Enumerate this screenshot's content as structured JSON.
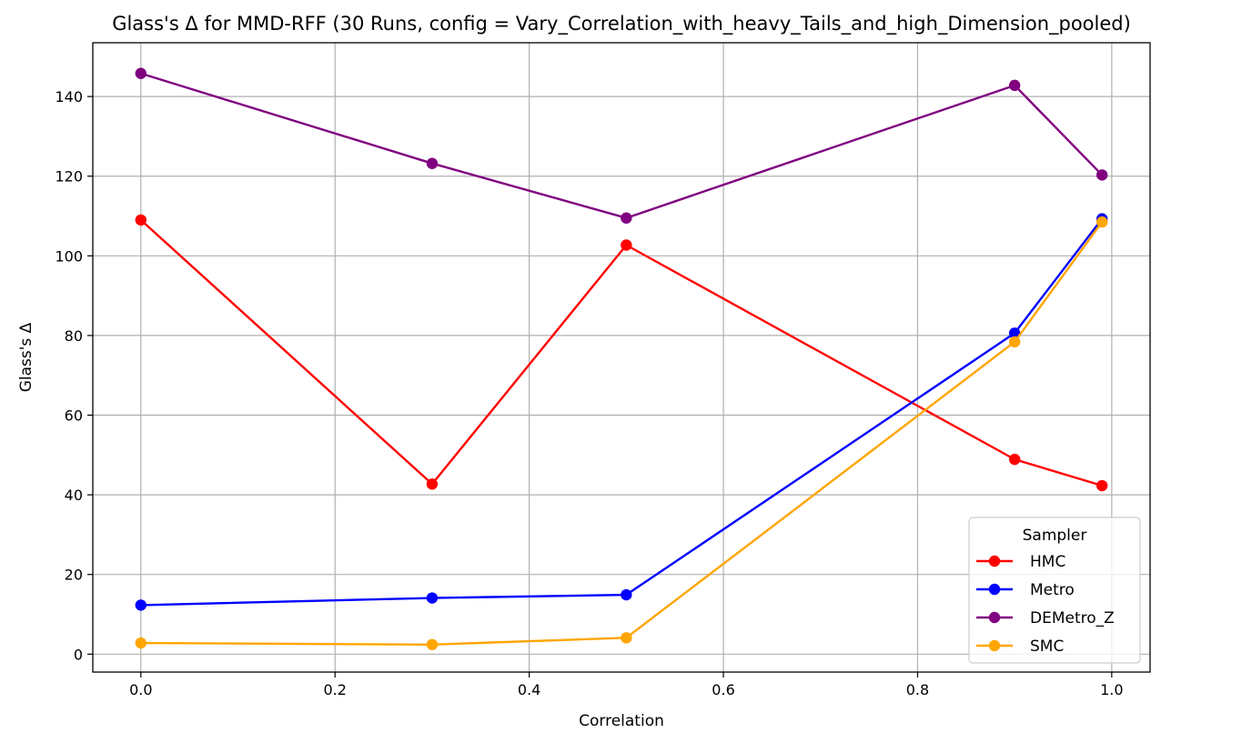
{
  "chart_data": {
    "type": "line",
    "title": "Glass's Δ for MMD-RFF (30 Runs, config = Vary_Correlation_with_heavy_Tails_and_high_Dimension_pooled)",
    "xlabel": "Correlation",
    "ylabel": "Glass's Δ",
    "x": [
      0.0,
      0.3,
      0.5,
      0.9,
      0.99
    ],
    "xlim": [
      -0.0495,
      1.0395
    ],
    "ylim": [
      -4.5,
      153.5
    ],
    "xticks": [
      0.0,
      0.2,
      0.4,
      0.6,
      0.8,
      1.0
    ],
    "xtick_labels": [
      "0.0",
      "0.2",
      "0.4",
      "0.6",
      "0.8",
      "1.0"
    ],
    "yticks": [
      0,
      20,
      40,
      60,
      80,
      100,
      120,
      140
    ],
    "ytick_labels": [
      "0",
      "20",
      "40",
      "60",
      "80",
      "100",
      "120",
      "140"
    ],
    "grid": true,
    "legend": {
      "title": "Sampler",
      "placement": "lower-right"
    },
    "series": [
      {
        "name": "HMC",
        "color": "#ff0000",
        "values": [
          109.0,
          42.7,
          102.7,
          48.9,
          42.3
        ]
      },
      {
        "name": "Metro",
        "color": "#0000ff",
        "values": [
          12.3,
          14.1,
          14.9,
          80.6,
          109.3
        ]
      },
      {
        "name": "DEMetro_Z",
        "color": "#800080",
        "values": [
          145.8,
          123.2,
          109.5,
          142.8,
          120.3
        ]
      },
      {
        "name": "SMC",
        "color": "#ffa500",
        "values": [
          2.8,
          2.4,
          4.1,
          78.4,
          108.5
        ]
      }
    ]
  }
}
